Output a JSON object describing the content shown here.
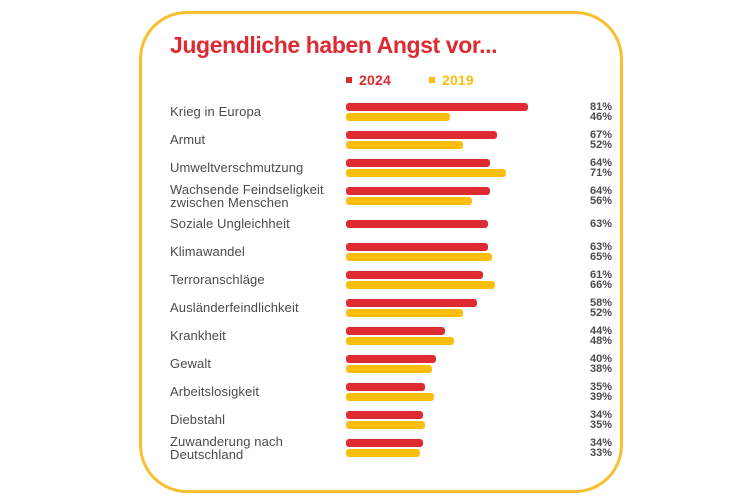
{
  "page": {
    "background": "#FFFFFF"
  },
  "card": {
    "title": "Jugendliche haben Angst vor...",
    "border_color": "#F8BE2D"
  },
  "legend": {
    "items": [
      {
        "label": "2024",
        "color": "#DE2A31"
      },
      {
        "label": "2019",
        "color": "#FBBE10"
      }
    ]
  },
  "colors": {
    "title": "#DE2A31",
    "text": "#4B4B4A",
    "bar_2024": "#DE2A31",
    "bar_2019": "#FBBE10"
  },
  "chart_data": {
    "type": "bar",
    "orientation": "horizontal",
    "title": "Jugendliche haben Angst vor...",
    "unit": "percent",
    "value_labels_position": "right",
    "legend_position": "top",
    "grid": false,
    "xlim": [
      0,
      100
    ],
    "categories": [
      "Krieg in Europa",
      "Armut",
      "Umweltverschmutzung",
      "Wachsende Feindseligkeit\nzwischen Menschen",
      "Soziale Ungleichheit",
      "Klimawandel",
      "Terroranschläge",
      "Ausländerfeindlichkeit",
      "Krankheit",
      "Gewalt",
      "Arbeitslosigkeit",
      "Diebstahl",
      "Zuwanderung nach\nDeutschland"
    ],
    "series": [
      {
        "name": "2024",
        "color": "#DE2A31",
        "values": [
          81,
          67,
          64,
          64,
          63,
          63,
          61,
          58,
          44,
          40,
          35,
          34,
          34
        ]
      },
      {
        "name": "2019",
        "color": "#FBBE10",
        "values": [
          46,
          52,
          71,
          56,
          null,
          65,
          66,
          52,
          48,
          38,
          39,
          35,
          33
        ]
      }
    ]
  }
}
